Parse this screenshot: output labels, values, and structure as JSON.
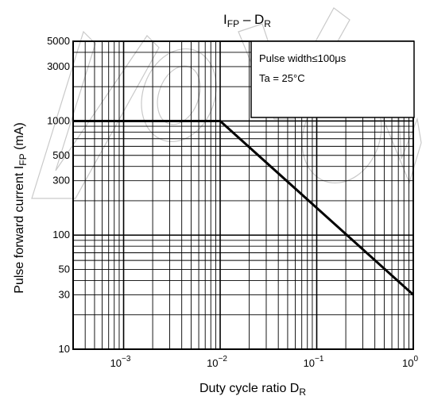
{
  "chart_data": {
    "type": "line",
    "title": {
      "main": "I",
      "main_sub": "FP",
      "sep": " – ",
      "second": "D",
      "second_sub": "R"
    },
    "xlabel": {
      "text": "Duty cycle ratio   D",
      "sub": "R"
    },
    "ylabel": {
      "text": "Pulse forward current   I",
      "sub": "FP",
      "unit": "   (mA)"
    },
    "x_scale": "log",
    "y_scale": "log",
    "xlim": [
      0.0003,
      1
    ],
    "ylim": [
      10,
      5000
    ],
    "x_ticks": [
      {
        "value": 0.001,
        "base": "10",
        "exp": "−3"
      },
      {
        "value": 0.01,
        "base": "10",
        "exp": "−2"
      },
      {
        "value": 0.1,
        "base": "10",
        "exp": "−1"
      },
      {
        "value": 1,
        "base": "10",
        "exp": "0"
      }
    ],
    "y_ticks": [
      {
        "value": 10,
        "label": "10"
      },
      {
        "value": 30,
        "label": "30"
      },
      {
        "value": 50,
        "label": "50"
      },
      {
        "value": 100,
        "label": "100"
      },
      {
        "value": 300,
        "label": "300"
      },
      {
        "value": 500,
        "label": "500"
      },
      {
        "value": 1000,
        "label": "1000"
      },
      {
        "value": 3000,
        "label": "3000"
      },
      {
        "value": 5000,
        "label": "5000"
      }
    ],
    "grid": true,
    "series": [
      {
        "x": [
          0.0003,
          0.01,
          1
        ],
        "y": [
          1000,
          1000,
          30
        ]
      }
    ],
    "annotation": {
      "lines": [
        "Pulse width≤100μs",
        "Ta = 25°C"
      ],
      "placement": "top-right"
    },
    "watermark": "Nichia",
    "colors": {
      "line": "#000000",
      "grid": "#000000",
      "watermark": "#c9c9c9"
    }
  }
}
